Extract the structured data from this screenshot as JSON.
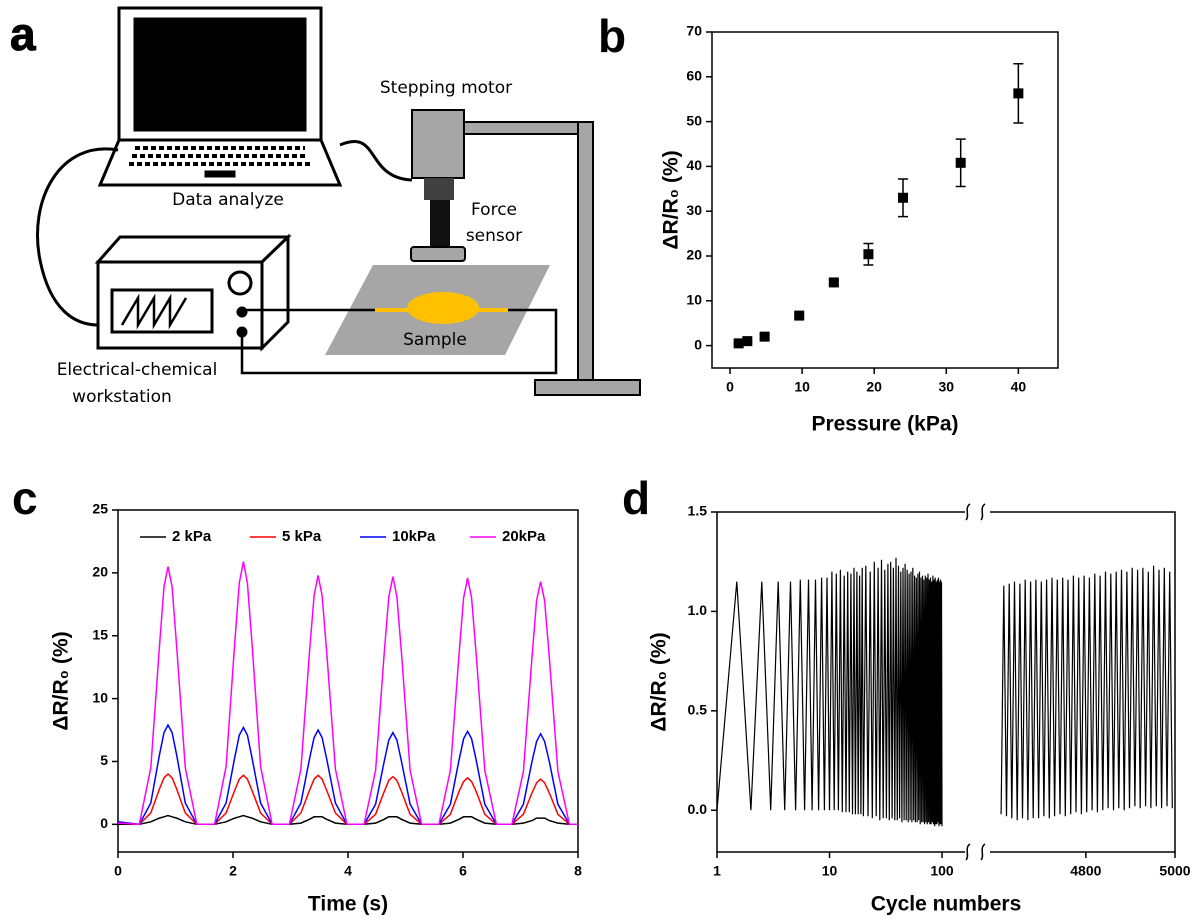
{
  "diagram": {
    "label": "a",
    "motor": "Stepping motor",
    "laptop": "Data analyze",
    "sensor": [
      "Force",
      "sensor"
    ],
    "sample": "Sample",
    "workstation": [
      "Electrical-chemical",
      "workstation"
    ]
  },
  "chart_data": [
    {
      "type": "scatter",
      "label": "b",
      "xlabel": "Pressure (kPa)",
      "ylabel": "ΔR/R₀ (%)",
      "x": [
        1.2,
        2.4,
        4.8,
        9.6,
        14.4,
        19.2,
        24,
        32,
        40
      ],
      "values": [
        0.5,
        1,
        2,
        6.7,
        14.1,
        20.4,
        33,
        40.8,
        56.3
      ],
      "errors": [
        0.2,
        0.3,
        0.4,
        0.5,
        0.6,
        2.4,
        4.2,
        5.3,
        6.6
      ],
      "color": "#000000",
      "xlim": [
        -2.5,
        45.5
      ],
      "xticks": [
        0,
        10,
        20,
        30,
        40
      ],
      "ylim": [
        -5,
        70
      ],
      "yticks": [
        0,
        10,
        20,
        30,
        40,
        50,
        60,
        70
      ]
    },
    {
      "type": "line",
      "label": "c",
      "xlabel": "Time (s)",
      "ylabel": "ΔR/R₀ (%)",
      "x": [
        0,
        0.37,
        0.57,
        0.72,
        0.8,
        0.87,
        0.94,
        1.02,
        1.17,
        1.37,
        1.68,
        1.88,
        2.03,
        2.11,
        2.18,
        2.25,
        2.33,
        2.48,
        2.68,
        2.98,
        3.18,
        3.33,
        3.41,
        3.48,
        3.55,
        3.63,
        3.78,
        3.98,
        4.28,
        4.48,
        4.63,
        4.71,
        4.78,
        4.85,
        4.93,
        5.08,
        5.28,
        5.58,
        5.78,
        5.93,
        6.01,
        6.08,
        6.15,
        6.23,
        6.38,
        6.58,
        6.85,
        7.05,
        7.2,
        7.28,
        7.35,
        7.42,
        7.5,
        7.65,
        7.85,
        8
      ],
      "series": [
        {
          "name": "2 kPa",
          "color": "#000000",
          "values": [
            0,
            0,
            0.2,
            0.5,
            0.6,
            0.7,
            0.6,
            0.5,
            0.2,
            0,
            0,
            0.2,
            0.5,
            0.6,
            0.7,
            0.6,
            0.5,
            0.2,
            0,
            0,
            0.1,
            0.4,
            0.6,
            0.6,
            0.6,
            0.4,
            0.1,
            0,
            0,
            0.1,
            0.4,
            0.6,
            0.6,
            0.6,
            0.4,
            0.1,
            0,
            0,
            0.1,
            0.4,
            0.6,
            0.6,
            0.6,
            0.4,
            0.1,
            0,
            0,
            0.1,
            0.3,
            0.5,
            0.5,
            0.5,
            0.3,
            0.1,
            0,
            0
          ]
        },
        {
          "name": "5 kPa",
          "color": "#ff0000",
          "values": [
            0.1,
            0,
            0.9,
            2.8,
            3.7,
            4.0,
            3.7,
            2.8,
            0.9,
            0,
            0,
            0.9,
            2.7,
            3.6,
            3.9,
            3.6,
            2.7,
            0.9,
            0,
            0,
            0.9,
            2.7,
            3.6,
            3.9,
            3.6,
            2.7,
            0.9,
            0,
            0,
            0.8,
            2.6,
            3.5,
            3.8,
            3.5,
            2.6,
            0.8,
            0,
            0,
            0.8,
            2.6,
            3.4,
            3.7,
            3.4,
            2.6,
            0.8,
            0,
            0,
            0.8,
            2.5,
            3.3,
            3.6,
            3.3,
            2.5,
            0.8,
            0,
            0
          ]
        },
        {
          "name": "10kPa",
          "color": "#0000ff",
          "values": [
            0.2,
            0,
            1.7,
            5.5,
            7.3,
            7.9,
            7.3,
            5.5,
            1.7,
            0,
            0,
            1.7,
            5.3,
            7.1,
            7.7,
            7.1,
            5.3,
            1.7,
            0,
            0,
            1.7,
            5.2,
            6.9,
            7.5,
            6.9,
            5.2,
            1.7,
            0,
            0,
            1.6,
            5.0,
            6.7,
            7.3,
            6.7,
            5.0,
            1.6,
            0,
            0,
            1.6,
            5.1,
            6.8,
            7.4,
            6.8,
            5.1,
            1.6,
            0,
            0,
            1.6,
            5.0,
            6.6,
            7.2,
            6.6,
            5.0,
            1.6,
            0,
            0
          ]
        },
        {
          "name": "20kPa",
          "color": "#ff00ff",
          "values": [
            0.1,
            0,
            4.5,
            14.1,
            18.9,
            20.5,
            18.9,
            14.1,
            4.5,
            0,
            0,
            4.6,
            14.4,
            19.2,
            20.9,
            19.2,
            14.4,
            4.6,
            0,
            0,
            4.4,
            13.7,
            18.2,
            19.8,
            18.2,
            13.7,
            4.4,
            0,
            0,
            4.3,
            13.6,
            18.1,
            19.7,
            18.1,
            13.6,
            4.3,
            0,
            0,
            4.3,
            13.5,
            18.0,
            19.6,
            18.0,
            13.5,
            4.3,
            0,
            0,
            4.2,
            13.3,
            17.8,
            19.3,
            17.8,
            13.3,
            4.2,
            0,
            0
          ]
        }
      ],
      "xlim": [
        0,
        8
      ],
      "xticks": [
        0,
        2,
        4,
        6,
        8
      ],
      "ylim": [
        -2.2,
        25
      ],
      "yticks": [
        0,
        5,
        10,
        15,
        20,
        25
      ]
    },
    {
      "type": "line",
      "label": "d",
      "xlabel": "Cycle numbers",
      "ylabel": "ΔR/R₀ (%)",
      "ylim": [
        -0.21,
        1.5
      ],
      "yticks": [
        {
          "value": 0,
          "label": "0.0"
        },
        {
          "value": 0.5,
          "label": "0.5"
        },
        {
          "value": 1,
          "label": "1.0"
        },
        {
          "value": 1.5,
          "label": "1.5"
        }
      ],
      "x_segments": [
        {
          "xlim": [
            1,
            160
          ],
          "log": true,
          "xticks": [
            1,
            10,
            100
          ]
        },
        {
          "xlim": [
            4585,
            5000
          ],
          "xticks": [
            4800,
            5000
          ]
        }
      ],
      "series": [
        {
          "color": "#000000",
          "segments": [
            {
              "x": [
                1,
                1.5,
                2,
                2.5,
                3,
                3.5,
                4,
                4.5,
                5,
                5.5,
                6,
                6.5,
                7,
                7.5,
                8,
                8.5,
                9,
                9.5,
                10,
                10.5,
                11,
                11.5,
                12,
                12.5,
                13,
                13.5,
                14,
                14.5,
                15,
                15.5,
                16,
                16.5,
                17,
                17.5,
                18,
                18.5,
                19,
                19.5,
                20,
                21,
                22,
                23,
                24,
                25,
                26,
                27,
                28,
                29,
                30,
                31,
                32,
                33,
                34,
                35,
                36,
                37,
                38,
                39,
                40,
                41,
                42,
                43,
                44,
                45,
                46,
                47,
                48,
                49,
                50,
                51,
                52,
                53,
                54,
                55,
                56,
                57,
                58,
                59,
                60,
                61,
                62,
                63,
                64,
                65,
                66,
                67,
                68,
                69,
                70,
                71,
                72,
                73,
                74,
                75,
                76,
                77,
                78,
                79,
                80,
                81,
                82,
                83,
                84,
                85,
                86,
                87,
                88,
                89,
                90,
                91,
                92,
                93,
                94,
                95,
                96,
                97,
                98,
                99,
                100
              ],
              "values": [
                0,
                1.15,
                0,
                1.15,
                0,
                1.15,
                0,
                1.15,
                0,
                1.16,
                0,
                1.16,
                0,
                1.16,
                0,
                1.17,
                0,
                1.17,
                0,
                1.2,
                0,
                1.19,
                0,
                1.21,
                -0.01,
                1.18,
                -0.01,
                1.2,
                -0.01,
                1.19,
                -0.02,
                1.22,
                -0.02,
                1.2,
                -0.02,
                1.18,
                -0.02,
                1.22,
                -0.03,
                1.23,
                -0.03,
                1.2,
                -0.04,
                1.25,
                -0.03,
                1.22,
                -0.05,
                1.26,
                -0.04,
                1.21,
                -0.04,
                1.24,
                -0.05,
                1.25,
                -0.04,
                1.22,
                -0.05,
                1.27,
                -0.05,
                1.23,
                -0.04,
                1.2,
                -0.06,
                1.22,
                -0.05,
                1.24,
                -0.05,
                1.21,
                -0.06,
                1.19,
                -0.05,
                1.2,
                -0.06,
                1.22,
                -0.05,
                1.18,
                -0.06,
                1.17,
                -0.06,
                1.19,
                -0.05,
                1.2,
                -0.07,
                1.17,
                -0.06,
                1.18,
                -0.06,
                1.16,
                -0.07,
                1.18,
                -0.06,
                1.17,
                -0.07,
                1.19,
                -0.06,
                1.16,
                -0.07,
                1.17,
                -0.07,
                1.15,
                -0.06,
                1.18,
                -0.07,
                1.16,
                -0.08,
                1.17,
                -0.07,
                1.15,
                -0.07,
                1.16,
                -0.06,
                1.17,
                -0.08,
                1.15,
                -0.07,
                1.16,
                -0.07,
                1.15,
                -0.08
              ]
            },
            {
              "x": [
                4610,
                4616,
                4622,
                4628,
                4634,
                4640,
                4646,
                4652,
                4658,
                4664,
                4670,
                4676,
                4682,
                4688,
                4694,
                4700,
                4706,
                4712,
                4718,
                4724,
                4730,
                4736,
                4742,
                4748,
                4754,
                4760,
                4766,
                4772,
                4778,
                4784,
                4790,
                4796,
                4802,
                4808,
                4814,
                4820,
                4826,
                4832,
                4838,
                4844,
                4850,
                4856,
                4862,
                4868,
                4874,
                4880,
                4886,
                4892,
                4898,
                4904,
                4910,
                4916,
                4922,
                4928,
                4934,
                4940,
                4946,
                4952,
                4958,
                4964,
                4970,
                4976,
                4982,
                4988,
                4994
              ],
              "values": [
                -0.02,
                1.13,
                -0.03,
                1.14,
                -0.04,
                1.15,
                -0.05,
                1.14,
                -0.04,
                1.16,
                -0.05,
                1.15,
                -0.04,
                1.16,
                -0.04,
                1.15,
                -0.03,
                1.16,
                -0.04,
                1.17,
                -0.03,
                1.16,
                -0.02,
                1.17,
                -0.03,
                1.16,
                -0.02,
                1.18,
                -0.01,
                1.17,
                -0.02,
                1.18,
                -0.01,
                1.17,
                0,
                1.19,
                -0.01,
                1.18,
                0,
                1.2,
                0.01,
                1.19,
                0,
                1.2,
                0.01,
                1.21,
                0,
                1.2,
                0.01,
                1.22,
                0.02,
                1.21,
                0.01,
                1.22,
                0.02,
                1.2,
                0.01,
                1.23,
                0.02,
                1.21,
                0.01,
                1.22,
                0.02,
                1.2,
                0.01
              ]
            }
          ]
        }
      ]
    }
  ]
}
